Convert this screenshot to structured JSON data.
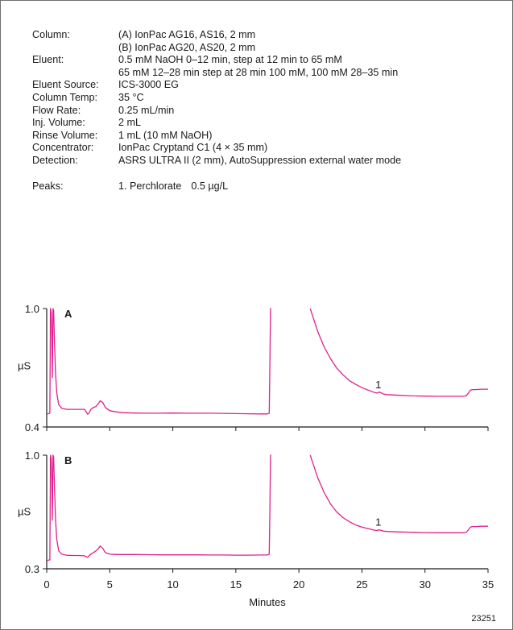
{
  "conditions": [
    {
      "label": "Column:",
      "values": [
        "(A) IonPac AG16, AS16, 2 mm",
        "(B) IonPac AG20, AS20, 2 mm"
      ]
    },
    {
      "label": "Eluent:",
      "values": [
        "0.5 mM NaOH 0–12 min, step at 12 min to 65 mM",
        "65 mM 12–28 min step at 28 min 100 mM, 100 mM 28–35 min"
      ]
    },
    {
      "label": "Eluent Source:",
      "values": [
        "ICS-3000 EG"
      ]
    },
    {
      "label": "Column Temp:",
      "values": [
        "35 °C"
      ]
    },
    {
      "label": "Flow Rate:",
      "values": [
        "0.25 mL/min"
      ]
    },
    {
      "label": "Inj. Volume:",
      "values": [
        "2 mL"
      ]
    },
    {
      "label": "Rinse Volume:",
      "values": [
        "1 mL (10 mM NaOH)"
      ]
    },
    {
      "label": "Concentrator:",
      "values": [
        "IonPac Cryptand C1 (4 × 35 mm)"
      ]
    },
    {
      "label": "Detection:",
      "values": [
        "ASRS ULTRA II (2 mm), AutoSuppression external water mode"
      ]
    }
  ],
  "peaks": {
    "label": "Peaks:",
    "items": [
      {
        "name": "1. Perchlorate",
        "value": "0.5 µg/L"
      }
    ]
  },
  "figure_id": "23251",
  "colors": {
    "trace": "#e0208c",
    "axis": "#1a1a1a",
    "frame": "#6f6f6f"
  },
  "chart_data": [
    {
      "type": "line",
      "panel": "A",
      "xlabel": "Minutes",
      "ylabel": "µS",
      "xlim": [
        0,
        35
      ],
      "ylim": [
        0.4,
        1.0
      ],
      "y_ticks": [
        "1.0",
        "0.4"
      ],
      "grid": false,
      "peak_labels": [
        {
          "label": "1",
          "x": 26.3,
          "y": 0.563
        }
      ],
      "series": [
        {
          "x": [
            0,
            0.25,
            0.3,
            0.35,
            0.4,
            0.45,
            0.5,
            0.55,
            0.62,
            0.7,
            0.8,
            0.95,
            1.2,
            1.6,
            2.0,
            2.5,
            3.0,
            3.25,
            3.35,
            3.5,
            3.7,
            3.9,
            4.1,
            4.25,
            4.45,
            4.65,
            5.0,
            5.5,
            6.0,
            7.0,
            8.0,
            9.0,
            10.0,
            11.0,
            12.0,
            13.0,
            14.0,
            15.0,
            16.0,
            17.0,
            17.5,
            17.65,
            17.7,
            17.75,
            17.8
          ],
          "y": [
            0.45,
            0.455,
            1.0,
            0.98,
            0.86,
            0.64,
            1.0,
            0.99,
            0.82,
            0.66,
            0.56,
            0.5,
            0.48,
            0.475,
            0.475,
            0.475,
            0.475,
            0.45,
            0.455,
            0.475,
            0.485,
            0.49,
            0.505,
            0.52,
            0.51,
            0.485,
            0.468,
            0.462,
            0.458,
            0.456,
            0.455,
            0.455,
            0.456,
            0.455,
            0.455,
            0.455,
            0.454,
            0.453,
            0.452,
            0.451,
            0.451,
            0.455,
            0.7,
            1.0,
            1.0
          ]
        },
        {
          "x": [
            20.9,
            21.2,
            21.5,
            22.0,
            22.5,
            23.0,
            23.5,
            24.0,
            24.5,
            25.0,
            25.5,
            26.0,
            26.2,
            26.35,
            26.5,
            26.7,
            27.0,
            28.0,
            29.0,
            30.0,
            31.0,
            32.0,
            33.0,
            33.25,
            33.45,
            33.6,
            33.75,
            34.0,
            34.5,
            35.0
          ],
          "y": [
            1.0,
            0.94,
            0.88,
            0.8,
            0.74,
            0.69,
            0.655,
            0.625,
            0.605,
            0.588,
            0.575,
            0.563,
            0.56,
            0.565,
            0.562,
            0.555,
            0.552,
            0.548,
            0.545,
            0.544,
            0.543,
            0.543,
            0.543,
            0.545,
            0.56,
            0.575,
            0.578,
            0.578,
            0.58,
            0.58
          ]
        }
      ]
    },
    {
      "type": "line",
      "panel": "B",
      "xlabel": "Minutes",
      "ylabel": "µS",
      "xlim": [
        0,
        35
      ],
      "ylim": [
        0.3,
        1.0
      ],
      "y_ticks": [
        "1.0",
        "0.3"
      ],
      "x_ticks": [
        0,
        5,
        10,
        15,
        20,
        25,
        30,
        35
      ],
      "grid": false,
      "peak_labels": [
        {
          "label": "1",
          "x": 26.3,
          "y": 0.54
        }
      ],
      "series": [
        {
          "x": [
            0,
            0.25,
            0.3,
            0.35,
            0.4,
            0.45,
            0.5,
            0.55,
            0.62,
            0.7,
            0.8,
            0.95,
            1.2,
            1.6,
            2.0,
            2.5,
            3.0,
            3.25,
            3.35,
            3.5,
            3.7,
            3.9,
            4.1,
            4.25,
            4.45,
            4.65,
            5.0,
            5.5,
            6.0,
            7.0,
            8.0,
            9.0,
            10.0,
            11.0,
            12.0,
            13.0,
            14.0,
            15.0,
            16.0,
            17.0,
            17.5,
            17.65,
            17.7,
            17.75,
            17.8
          ],
          "y": [
            0.35,
            0.355,
            1.0,
            0.98,
            0.85,
            0.6,
            1.0,
            0.99,
            0.8,
            0.6,
            0.48,
            0.41,
            0.39,
            0.383,
            0.382,
            0.382,
            0.38,
            0.37,
            0.38,
            0.39,
            0.4,
            0.41,
            0.425,
            0.44,
            0.425,
            0.4,
            0.39,
            0.388,
            0.388,
            0.388,
            0.387,
            0.386,
            0.386,
            0.386,
            0.386,
            0.385,
            0.385,
            0.384,
            0.384,
            0.385,
            0.385,
            0.39,
            0.65,
            1.0,
            1.0
          ]
        },
        {
          "x": [
            20.9,
            21.2,
            21.5,
            22.0,
            22.5,
            23.0,
            23.5,
            24.0,
            24.5,
            25.0,
            25.5,
            26.0,
            26.2,
            26.35,
            26.5,
            26.7,
            27.0,
            28.0,
            29.0,
            30.0,
            31.0,
            32.0,
            33.0,
            33.25,
            33.45,
            33.6,
            33.75,
            34.0,
            34.5,
            35.0
          ],
          "y": [
            1.0,
            0.93,
            0.86,
            0.77,
            0.7,
            0.65,
            0.615,
            0.59,
            0.57,
            0.557,
            0.547,
            0.538,
            0.536,
            0.54,
            0.537,
            0.532,
            0.53,
            0.527,
            0.525,
            0.523,
            0.522,
            0.522,
            0.522,
            0.524,
            0.54,
            0.556,
            0.56,
            0.56,
            0.562,
            0.562
          ]
        }
      ]
    }
  ]
}
